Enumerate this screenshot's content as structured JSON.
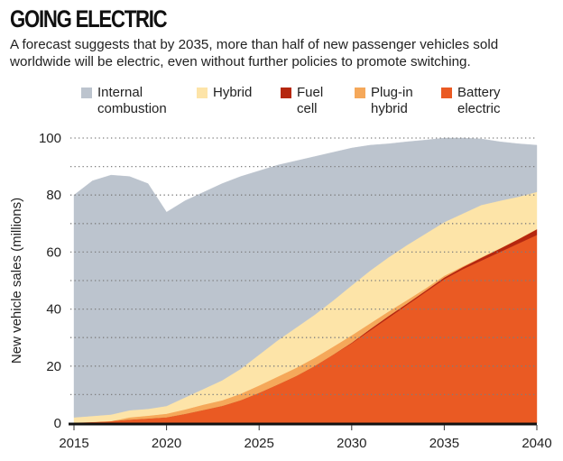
{
  "header": {
    "title": "GOING ELECTRIC",
    "subtitle": "A forecast suggests that by 2035, more than half of new passenger vehicles sold worldwide will be electric, even without further policies to promote switching."
  },
  "legend": [
    {
      "label": "Internal\ncombustion",
      "color": "#bcc4ce",
      "key": "internal_combustion"
    },
    {
      "label": "Hybrid",
      "color": "#fde4a8",
      "key": "hybrid"
    },
    {
      "label": "Fuel\ncell",
      "color": "#b5270f",
      "key": "fuel_cell"
    },
    {
      "label": "Plug-in\nhybrid",
      "color": "#f5a85a",
      "key": "plugin_hybrid"
    },
    {
      "label": "Battery\nelectric",
      "color": "#ea5a23",
      "key": "battery_electric"
    }
  ],
  "chart_data": {
    "type": "area",
    "stacked": true,
    "title": "GOING ELECTRIC",
    "xlabel": "",
    "ylabel": "New vehicle sales (millions)",
    "xlim": [
      2015,
      2040
    ],
    "ylim": [
      0,
      100
    ],
    "x_ticks": [
      2015,
      2020,
      2025,
      2030,
      2035,
      2040
    ],
    "y_ticks": [
      0,
      20,
      40,
      60,
      80,
      100
    ],
    "y_gridlines": [
      10,
      20,
      30,
      40,
      50,
      60,
      70,
      80,
      90,
      100
    ],
    "grid": "horizontal dotted",
    "legend_position": "top",
    "x": [
      2015,
      2016,
      2017,
      2018,
      2019,
      2020,
      2021,
      2022,
      2023,
      2024,
      2025,
      2026,
      2027,
      2028,
      2029,
      2030,
      2031,
      2032,
      2033,
      2034,
      2035,
      2036,
      2037,
      2038,
      2039,
      2040
    ],
    "series": [
      {
        "name": "Battery electric",
        "color": "#ea5a23",
        "values": [
          0.2,
          0.4,
          0.7,
          1.2,
          1.6,
          2.0,
          3.2,
          4.6,
          6.0,
          8.0,
          10.6,
          13.5,
          16.5,
          20.0,
          24.0,
          28.0,
          32.5,
          37.0,
          41.5,
          46.0,
          50.5,
          54.0,
          57.0,
          60.0,
          63.0,
          66.0
        ]
      },
      {
        "name": "Fuel cell",
        "color": "#b5270f",
        "values": [
          0,
          0,
          0,
          0,
          0,
          0,
          0,
          0,
          0,
          0,
          0,
          0,
          0,
          0,
          0,
          0.2,
          0.5,
          0.6,
          0.5,
          0.5,
          0.6,
          0.7,
          1.0,
          1.2,
          1.5,
          2.0
        ]
      },
      {
        "name": "Plug-in hybrid",
        "color": "#f5a85a",
        "values": [
          0,
          0,
          0,
          0.8,
          1.0,
          1.3,
          1.6,
          1.9,
          2.0,
          2.3,
          2.6,
          2.8,
          2.9,
          2.9,
          2.8,
          2.6,
          2.0,
          1.6,
          1.2,
          0.8,
          0.6,
          0.3,
          0.2,
          0.1,
          0.1,
          0.1
        ]
      },
      {
        "name": "Hybrid",
        "color": "#fde4a8",
        "values": [
          1.8,
          2.1,
          2.3,
          2.5,
          2.4,
          2.7,
          4.2,
          5.5,
          7.0,
          8.7,
          10.8,
          12.7,
          14.1,
          15.1,
          16.2,
          17.5,
          18.5,
          19.0,
          19.3,
          19.2,
          18.8,
          18.5,
          18.3,
          16.7,
          14.8,
          13.0
        ]
      },
      {
        "name": "Internal combustion",
        "color": "#bcc4ce",
        "values": [
          78.0,
          82.5,
          84.0,
          82.0,
          79.0,
          68.0,
          69.0,
          69.0,
          69.0,
          67.5,
          64.5,
          61.5,
          58.5,
          55.5,
          52.0,
          48.2,
          44.0,
          39.8,
          36.2,
          32.8,
          29.5,
          26.5,
          23.2,
          20.7,
          18.6,
          16.4
        ]
      }
    ]
  }
}
